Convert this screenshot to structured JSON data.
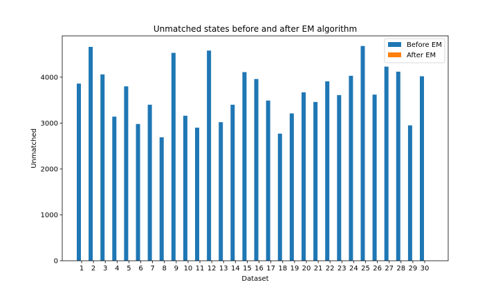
{
  "chart_data": {
    "type": "bar",
    "title": "Unmatched states before and after EM algorithm",
    "xlabel": "Dataset",
    "ylabel": "Unmatched",
    "categories": [
      "1",
      "2",
      "3",
      "4",
      "5",
      "6",
      "7",
      "8",
      "9",
      "10",
      "11",
      "12",
      "13",
      "14",
      "15",
      "16",
      "17",
      "18",
      "19",
      "20",
      "21",
      "22",
      "23",
      "24",
      "25",
      "26",
      "27",
      "28",
      "29",
      "30"
    ],
    "series": [
      {
        "name": "Before EM",
        "color": "#1f77b4",
        "values": [
          3860,
          4660,
          4060,
          3140,
          3800,
          2980,
          3400,
          2690,
          4530,
          3160,
          2900,
          4580,
          3020,
          3400,
          4110,
          3960,
          3490,
          2770,
          3210,
          3670,
          3460,
          3910,
          3610,
          4030,
          4680,
          3620,
          4230,
          4120,
          2950,
          4020
        ]
      },
      {
        "name": "After EM",
        "color": "#ff7f0e",
        "values": [
          0,
          0,
          0,
          0,
          0,
          0,
          0,
          0,
          0,
          0,
          0,
          0,
          0,
          0,
          0,
          0,
          0,
          0,
          0,
          0,
          0,
          0,
          0,
          0,
          0,
          0,
          0,
          0,
          0,
          0
        ]
      }
    ],
    "ylim": [
      0,
      4900
    ],
    "yticks": [
      0,
      1000,
      2000,
      3000,
      4000
    ],
    "grid": false,
    "legend_position": "top-right"
  }
}
